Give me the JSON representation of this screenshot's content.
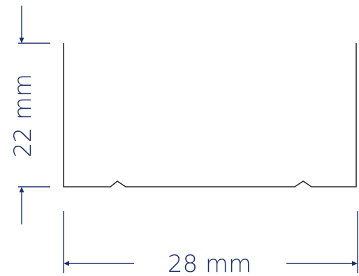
{
  "dimensions": {
    "height_label": "22 mm",
    "width_label": "28 mm"
  },
  "colors": {
    "dimension": "#1b2f6b",
    "profile": "#2a2a2a",
    "background": "#ffffff"
  }
}
